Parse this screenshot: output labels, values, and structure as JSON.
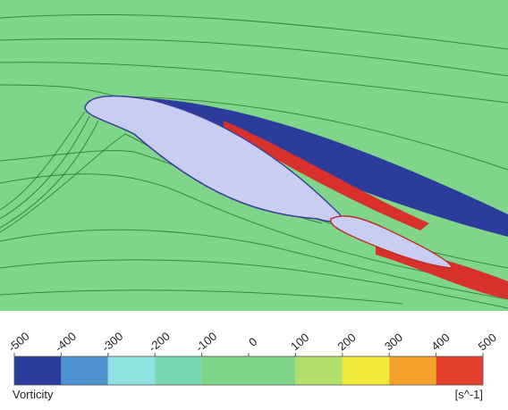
{
  "colorbar": {
    "label": "Vorticity",
    "unit": "[s^-1]",
    "ticks": [
      -500,
      -400,
      -300,
      -200,
      -100,
      0,
      100,
      200,
      300,
      400,
      500
    ],
    "colors": [
      "#2d3c9c",
      "#4e95cf",
      "#8fe0e0",
      "#79d8b4",
      "#7fd68a",
      "#7fd68a",
      "#b1e06a",
      "#f0e93a",
      "#f5a02a",
      "#e2402a"
    ]
  }
}
